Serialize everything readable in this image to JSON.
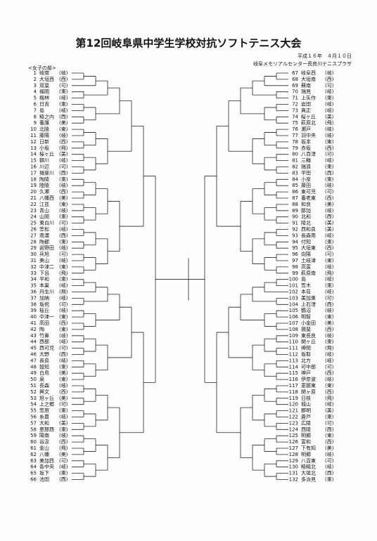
{
  "header": {
    "title": "第12回岐阜県中学生学校対抗ソフトテニス大会",
    "date": "平成１６年　４月１０日",
    "venue": "岐阜メモリアルセンター長良川テニスプラザ",
    "section": "<女子の部>"
  },
  "left": [
    {
      "no": "1",
      "name": "岐南",
      "pref": "(岐)"
    },
    {
      "no": "2",
      "name": "大垣西",
      "pref": "(西)"
    },
    {
      "no": "3",
      "name": "双葉",
      "pref": "(可)"
    },
    {
      "no": "4",
      "name": "福岡",
      "pref": "(東)"
    },
    {
      "no": "5",
      "name": "梅林",
      "pref": "(岐)"
    },
    {
      "no": "6",
      "name": "日吉",
      "pref": "(東)"
    },
    {
      "no": "7",
      "name": "島",
      "pref": "(岐)"
    },
    {
      "no": "8",
      "name": "精之内",
      "pref": "(西)"
    },
    {
      "no": "9",
      "name": "養護",
      "pref": "(美)"
    },
    {
      "no": "10",
      "name": "北陵",
      "pref": "(東)"
    },
    {
      "no": "11",
      "name": "藤陽",
      "pref": "(岐)"
    },
    {
      "no": "12",
      "name": "日新",
      "pref": "(西)"
    },
    {
      "no": "13",
      "name": "小坂",
      "pref": "(飛)"
    },
    {
      "no": "14",
      "name": "桜ヶ丘",
      "pref": "(美)"
    },
    {
      "no": "15",
      "name": "額川",
      "pref": "(岐)"
    },
    {
      "no": "16",
      "name": "川辺",
      "pref": "(可)"
    },
    {
      "no": "17",
      "name": "揖斐川",
      "pref": "(西)"
    },
    {
      "no": "18",
      "name": "陶陵",
      "pref": "(東)"
    },
    {
      "no": "19",
      "name": "陸陵",
      "pref": "(岐)"
    },
    {
      "no": "20",
      "name": "久瀬",
      "pref": "(西)"
    },
    {
      "no": "21",
      "name": "八幡西",
      "pref": "(美)"
    },
    {
      "no": "22",
      "name": "江並",
      "pref": "(東)"
    },
    {
      "no": "23",
      "name": "青山",
      "pref": "(岐)"
    },
    {
      "no": "24",
      "name": "山岡",
      "pref": "(東)"
    },
    {
      "no": "25",
      "name": "東白川",
      "pref": "(可)"
    },
    {
      "no": "26",
      "name": "笠松",
      "pref": "(岐)"
    },
    {
      "no": "27",
      "name": "南濃",
      "pref": "(西)"
    },
    {
      "no": "28",
      "name": "陶都",
      "pref": "(東)"
    },
    {
      "no": "29",
      "name": "岩野田",
      "pref": "(岐)"
    },
    {
      "no": "30",
      "name": "兵旭",
      "pref": "(可)"
    },
    {
      "no": "31",
      "name": "美山",
      "pref": "(岐)"
    },
    {
      "no": "32",
      "name": "中津二",
      "pref": "(東)"
    },
    {
      "no": "33",
      "name": "下呂",
      "pref": "(飛)"
    },
    {
      "no": "34",
      "name": "平和",
      "pref": "(東)"
    },
    {
      "no": "35",
      "name": "本巣",
      "pref": "(岐)"
    },
    {
      "no": "36",
      "name": "丹生川",
      "pref": "(飛)"
    },
    {
      "no": "37",
      "name": "加納",
      "pref": "(岐)"
    },
    {
      "no": "38",
      "name": "坂祝",
      "pref": "(可)"
    },
    {
      "no": "39",
      "name": "桜丘",
      "pref": "(岐)"
    },
    {
      "no": "40",
      "name": "中津一",
      "pref": "(東)"
    },
    {
      "no": "41",
      "name": "高田",
      "pref": "(西)"
    },
    {
      "no": "42",
      "name": "陶",
      "pref": "(東)"
    },
    {
      "no": "43",
      "name": "竹鼻",
      "pref": "(岐)"
    },
    {
      "no": "44",
      "name": "西部",
      "pref": "(岐)"
    },
    {
      "no": "45",
      "name": "西可児",
      "pref": "(可)"
    },
    {
      "no": "46",
      "name": "大野",
      "pref": "(西)"
    },
    {
      "no": "47",
      "name": "長良",
      "pref": "(岐)"
    },
    {
      "no": "48",
      "name": "鼓知",
      "pref": "(東)"
    },
    {
      "no": "49",
      "name": "白鳥",
      "pref": "(美)"
    },
    {
      "no": "50",
      "name": "泉",
      "pref": "(東)"
    },
    {
      "no": "51",
      "name": "長森",
      "pref": "(岐)"
    },
    {
      "no": "52",
      "name": "興文",
      "pref": "(西)"
    },
    {
      "no": "53",
      "name": "旭ヶ丘",
      "pref": "(美)"
    },
    {
      "no": "54",
      "name": "上之郷",
      "pref": "(可)"
    },
    {
      "no": "55",
      "name": "笠原",
      "pref": "(東)"
    },
    {
      "no": "56",
      "name": "糸貫",
      "pref": "(岐)"
    },
    {
      "no": "57",
      "name": "大和",
      "pref": "(美)"
    },
    {
      "no": "58",
      "name": "恵那西",
      "pref": "(東)"
    },
    {
      "no": "59",
      "name": "陽南",
      "pref": "(岐)"
    },
    {
      "no": "60",
      "name": "谷汲",
      "pref": "(西)"
    },
    {
      "no": "61",
      "name": "金山",
      "pref": "(飛)"
    },
    {
      "no": "62",
      "name": "八幡",
      "pref": "(美)"
    },
    {
      "no": "63",
      "name": "美加西",
      "pref": "(可)"
    },
    {
      "no": "64",
      "name": "各中央",
      "pref": "(岐)"
    },
    {
      "no": "65",
      "name": "坂下",
      "pref": "(東)"
    },
    {
      "no": "66",
      "name": "池田",
      "pref": "(西)"
    }
  ],
  "right": [
    {
      "no": "67",
      "name": "岐阜西",
      "pref": "(岐)"
    },
    {
      "no": "68",
      "name": "大垣南",
      "pref": "(西)"
    },
    {
      "no": "69",
      "name": "蘇南",
      "pref": "(可)"
    },
    {
      "no": "70",
      "name": "瑞見",
      "pref": "(岐)"
    },
    {
      "no": "71",
      "name": "上矢作",
      "pref": "(東)"
    },
    {
      "no": "72",
      "name": "岩田",
      "pref": "(岐)"
    },
    {
      "no": "73",
      "name": "真正",
      "pref": "(岐)"
    },
    {
      "no": "74",
      "name": "桜ヶ丘",
      "pref": "(美)"
    },
    {
      "no": "75",
      "name": "萩原北",
      "pref": "(飛)"
    },
    {
      "no": "76",
      "name": "瀬戸",
      "pref": "(岐)"
    },
    {
      "no": "77",
      "name": "羽中央",
      "pref": "(岐)"
    },
    {
      "no": "78",
      "name": "坂本",
      "pref": "(東)"
    },
    {
      "no": "79",
      "name": "赤坂",
      "pref": "(西)"
    },
    {
      "no": "80",
      "name": "八百津",
      "pref": "(可)"
    },
    {
      "no": "81",
      "name": "三輪",
      "pref": "(岐)"
    },
    {
      "no": "82",
      "name": "瑞浪",
      "pref": "(東)"
    },
    {
      "no": "83",
      "name": "平田",
      "pref": "(西)"
    },
    {
      "no": "84",
      "name": "小泉",
      "pref": "(東)"
    },
    {
      "no": "85",
      "name": "藤田",
      "pref": "(岐)"
    },
    {
      "no": "86",
      "name": "東可児",
      "pref": "(可)"
    },
    {
      "no": "87",
      "name": "養老東",
      "pref": "(西)"
    },
    {
      "no": "88",
      "name": "和良",
      "pref": "(美)"
    },
    {
      "no": "89",
      "name": "那加",
      "pref": "(岐)"
    },
    {
      "no": "90",
      "name": "北和",
      "pref": "(西)"
    },
    {
      "no": "91",
      "name": "陵北",
      "pref": "(美)"
    },
    {
      "no": "92",
      "name": "西和良",
      "pref": "(美)"
    },
    {
      "no": "93",
      "name": "長森南",
      "pref": "(岐)"
    },
    {
      "no": "94",
      "name": "付知",
      "pref": "(東)"
    },
    {
      "no": "95",
      "name": "大垣東",
      "pref": "(西)"
    },
    {
      "no": "96",
      "name": "向陽",
      "pref": "(可)"
    },
    {
      "no": "97",
      "name": "土岐津",
      "pref": "(東)"
    },
    {
      "no": "98",
      "name": "高富",
      "pref": "(岐)"
    },
    {
      "no": "99",
      "name": "萩原南",
      "pref": "(飛)"
    },
    {
      "no": "100",
      "name": "島",
      "pref": "(岐)"
    },
    {
      "no": "101",
      "name": "笠木",
      "pref": "(東)"
    },
    {
      "no": "102",
      "name": "本荘",
      "pref": "(岐)"
    },
    {
      "no": "103",
      "name": "美加東",
      "pref": "(可)"
    },
    {
      "no": "104",
      "name": "上石津",
      "pref": "(西)"
    },
    {
      "no": "105",
      "name": "鶴沼",
      "pref": "(岐)"
    },
    {
      "no": "106",
      "name": "明智",
      "pref": "(東)"
    },
    {
      "no": "107",
      "name": "小金田",
      "pref": "(美)"
    },
    {
      "no": "108",
      "name": "揖斐",
      "pref": "(西)"
    },
    {
      "no": "109",
      "name": "東長良",
      "pref": "(岐)"
    },
    {
      "no": "110",
      "name": "関ヶ丘",
      "pref": "(東)"
    },
    {
      "no": "111",
      "name": "神岡",
      "pref": "(飛)"
    },
    {
      "no": "112",
      "name": "坂取",
      "pref": "(岐)"
    },
    {
      "no": "113",
      "name": "北方",
      "pref": "(岐)"
    },
    {
      "no": "114",
      "name": "可中部",
      "pref": "(可)"
    },
    {
      "no": "115",
      "name": "神戸",
      "pref": "(西)"
    },
    {
      "no": "116",
      "name": "伊奈波",
      "pref": "(岐)"
    },
    {
      "no": "117",
      "name": "恵那東",
      "pref": "(東)"
    },
    {
      "no": "118",
      "name": "関ヶ原",
      "pref": "(西)"
    },
    {
      "no": "119",
      "name": "日枝",
      "pref": "(飛)"
    },
    {
      "no": "120",
      "name": "城山",
      "pref": "(岐)"
    },
    {
      "no": "121",
      "name": "郡明",
      "pref": "(美)"
    },
    {
      "no": "122",
      "name": "蒼戸",
      "pref": "(東)"
    },
    {
      "no": "123",
      "name": "広陵",
      "pref": "(可)"
    },
    {
      "no": "124",
      "name": "西陵",
      "pref": "(西)"
    },
    {
      "no": "125",
      "name": "明郷",
      "pref": "(東)"
    },
    {
      "no": "126",
      "name": "富和",
      "pref": "(西)"
    },
    {
      "no": "127",
      "name": "下有知",
      "pref": "(美)"
    },
    {
      "no": "128",
      "name": "明郷",
      "pref": "(岐)"
    },
    {
      "no": "129",
      "name": "八百東",
      "pref": "(可)"
    },
    {
      "no": "130",
      "name": "精精北",
      "pref": "(岐)"
    },
    {
      "no": "131",
      "name": "大垣北",
      "pref": "(西)"
    },
    {
      "no": "132",
      "name": "多治見",
      "pref": "(東)"
    }
  ]
}
